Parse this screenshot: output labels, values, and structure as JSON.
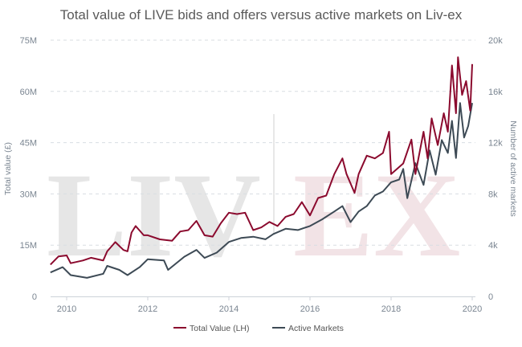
{
  "chart_data": {
    "type": "line",
    "title": "Total value of LIVE bids and offers versus active markets on Liv-ex",
    "watermark": "LIV|EX",
    "xlabel": "",
    "ylabel_left": "Total value (£)",
    "ylabel_right": "Number of active markets",
    "xlim": [
      2009.6,
      2020.0
    ],
    "ylim_left": [
      0,
      75
    ],
    "ylim_right": [
      0,
      20
    ],
    "x_ticks": [
      "2010",
      "2012",
      "2014",
      "2016",
      "2018",
      "2020"
    ],
    "x_tick_values": [
      2010,
      2012,
      2014,
      2016,
      2018,
      2020
    ],
    "y_left_ticks": [
      "0",
      "15M",
      "30M",
      "45M",
      "60M",
      "75M"
    ],
    "y_right_ticks": [
      "0",
      "4k",
      "8k",
      "12k",
      "16k",
      "20k"
    ],
    "grid": "horizontal dashed",
    "legend_position": "bottom",
    "colors": {
      "total_value": "#8b0a2e",
      "active_markets": "#3d4a55"
    },
    "series": [
      {
        "name": "Total Value (LH)",
        "axis": "left",
        "unit": "£M",
        "points": [
          [
            2009.6,
            9.3
          ],
          [
            2009.8,
            11.7
          ],
          [
            2010.0,
            12
          ],
          [
            2010.1,
            9.7
          ],
          [
            2010.4,
            10.5
          ],
          [
            2010.6,
            11.3
          ],
          [
            2010.9,
            10.5
          ],
          [
            2011.0,
            13.2
          ],
          [
            2011.2,
            15.9
          ],
          [
            2011.4,
            13.6
          ],
          [
            2011.5,
            13.2
          ],
          [
            2011.6,
            18.7
          ],
          [
            2011.7,
            20.6
          ],
          [
            2011.9,
            17.9
          ],
          [
            2012.0,
            17.9
          ],
          [
            2012.3,
            16.7
          ],
          [
            2012.6,
            16.3
          ],
          [
            2012.8,
            19
          ],
          [
            2013.0,
            19.4
          ],
          [
            2013.2,
            22.1
          ],
          [
            2013.4,
            17.9
          ],
          [
            2013.6,
            17.5
          ],
          [
            2013.8,
            21.4
          ],
          [
            2014.0,
            24.5
          ],
          [
            2014.2,
            24.1
          ],
          [
            2014.4,
            24.5
          ],
          [
            2014.6,
            19.4
          ],
          [
            2014.8,
            20.2
          ],
          [
            2015.0,
            21.8
          ],
          [
            2015.2,
            20.6
          ],
          [
            2015.4,
            23.3
          ],
          [
            2015.6,
            24.1
          ],
          [
            2015.8,
            27.6
          ],
          [
            2016.0,
            23.7
          ],
          [
            2016.2,
            28.8
          ],
          [
            2016.4,
            29.5
          ],
          [
            2016.6,
            35.8
          ],
          [
            2016.8,
            40.4
          ],
          [
            2016.9,
            35.8
          ],
          [
            2017.1,
            30.3
          ],
          [
            2017.2,
            35.8
          ],
          [
            2017.4,
            41.2
          ],
          [
            2017.6,
            40.4
          ],
          [
            2017.8,
            42
          ],
          [
            2017.95,
            48.2
          ],
          [
            2018.0,
            35.8
          ],
          [
            2018.3,
            38.9
          ],
          [
            2018.5,
            45.9
          ],
          [
            2018.6,
            35.8
          ],
          [
            2018.8,
            48.2
          ],
          [
            2018.9,
            40.4
          ],
          [
            2019.0,
            52.1
          ],
          [
            2019.15,
            44.3
          ],
          [
            2019.3,
            53.6
          ],
          [
            2019.4,
            48.2
          ],
          [
            2019.5,
            67.6
          ],
          [
            2019.6,
            53.6
          ],
          [
            2019.65,
            70
          ],
          [
            2019.75,
            59
          ],
          [
            2019.85,
            63
          ],
          [
            2019.95,
            54.4
          ],
          [
            2020.0,
            68
          ]
        ]
      },
      {
        "name": "Active Markets",
        "axis": "right",
        "unit": "k",
        "points": [
          [
            2009.6,
            1.87
          ],
          [
            2009.9,
            2.28
          ],
          [
            2010.1,
            1.66
          ],
          [
            2010.5,
            1.45
          ],
          [
            2010.9,
            1.76
          ],
          [
            2011.0,
            2.38
          ],
          [
            2011.3,
            2.07
          ],
          [
            2011.5,
            1.66
          ],
          [
            2011.8,
            2.28
          ],
          [
            2012.0,
            2.9
          ],
          [
            2012.4,
            2.8
          ],
          [
            2012.5,
            2.07
          ],
          [
            2012.9,
            3.1
          ],
          [
            2013.2,
            3.63
          ],
          [
            2013.4,
            3.0
          ],
          [
            2013.7,
            3.42
          ],
          [
            2014.0,
            4.25
          ],
          [
            2014.3,
            4.56
          ],
          [
            2014.6,
            4.66
          ],
          [
            2014.9,
            4.46
          ],
          [
            2015.1,
            4.87
          ],
          [
            2015.4,
            5.28
          ],
          [
            2015.7,
            5.18
          ],
          [
            2016.0,
            5.49
          ],
          [
            2016.3,
            6.01
          ],
          [
            2016.6,
            6.63
          ],
          [
            2016.8,
            7.05
          ],
          [
            2017.0,
            5.8
          ],
          [
            2017.2,
            6.63
          ],
          [
            2017.4,
            7.05
          ],
          [
            2017.6,
            7.88
          ],
          [
            2017.8,
            8.19
          ],
          [
            2018.0,
            8.91
          ],
          [
            2018.2,
            9.12
          ],
          [
            2018.3,
            9.95
          ],
          [
            2018.4,
            7.67
          ],
          [
            2018.6,
            10.4
          ],
          [
            2018.8,
            8.7
          ],
          [
            2018.95,
            11.4
          ],
          [
            2019.1,
            9.5
          ],
          [
            2019.25,
            12.2
          ],
          [
            2019.4,
            11.2
          ],
          [
            2019.5,
            13.7
          ],
          [
            2019.6,
            10.8
          ],
          [
            2019.7,
            15.1
          ],
          [
            2019.8,
            12.4
          ],
          [
            2019.9,
            13.3
          ],
          [
            2020.0,
            15.1
          ]
        ]
      }
    ]
  }
}
